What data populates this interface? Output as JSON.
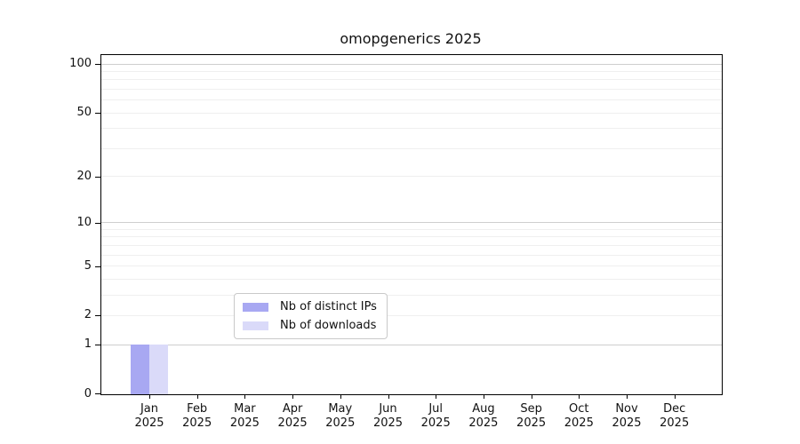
{
  "chart_data": {
    "type": "bar",
    "title": "omopgenerics 2025",
    "x_categories": [
      "Jan",
      "Feb",
      "Mar",
      "Apr",
      "May",
      "Jun",
      "Jul",
      "Aug",
      "Sep",
      "Oct",
      "Nov",
      "Dec"
    ],
    "x_year": "2025",
    "series": [
      {
        "name": "Nb of distinct IPs",
        "color": "#a8a8f2",
        "values": [
          1,
          0,
          0,
          0,
          0,
          0,
          0,
          0,
          0,
          0,
          0,
          0
        ]
      },
      {
        "name": "Nb of downloads",
        "color": "#dadaf9",
        "values": [
          1,
          0,
          0,
          0,
          0,
          0,
          0,
          0,
          0,
          0,
          0,
          0
        ]
      }
    ],
    "y_scale": "log10(1+y)",
    "y_ticks": [
      0,
      1,
      2,
      5,
      10,
      20,
      50,
      100
    ],
    "y_grid_major": [
      1,
      10,
      100
    ],
    "y_grid_minor": [
      2,
      3,
      4,
      5,
      6,
      7,
      8,
      9,
      20,
      30,
      40,
      50,
      60,
      70,
      80,
      90
    ],
    "y_top_value": 113.4,
    "ylim": [
      0,
      113.4
    ],
    "grid": true,
    "legend_position": "lower center",
    "legend": [
      "Nb of distinct IPs",
      "Nb of downloads"
    ],
    "colors": {
      "grid_major": "#cecece",
      "grid_minor": "#efefef",
      "spine": "#000000",
      "text": "#111111",
      "background": "#ffffff"
    }
  }
}
